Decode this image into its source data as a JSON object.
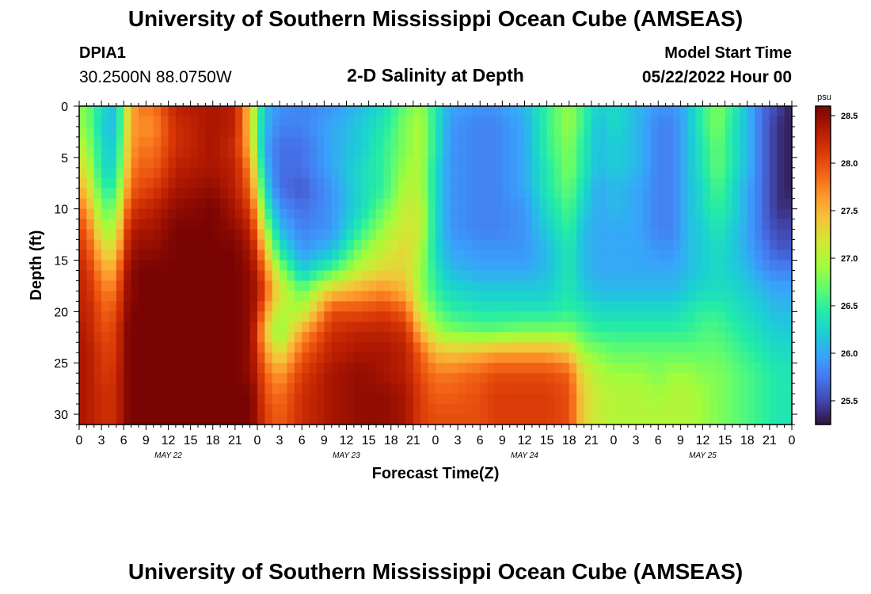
{
  "header": {
    "title": "University of Southern Mississippi Ocean Cube (AMSEAS)",
    "station_id": "DPIA1",
    "station_coords": "30.2500N  88.0750W",
    "subtitle": "2-D Salinity at Depth",
    "model_start_label": "Model Start Time",
    "model_start_value": "05/22/2022 Hour 00"
  },
  "footer": {
    "title": "University of Southern Mississippi Ocean Cube (AMSEAS)"
  },
  "chart_data": {
    "type": "heatmap",
    "title": "2-D Salinity at Depth",
    "xlabel": "Forecast Time(Z)",
    "ylabel": "Depth (ft)",
    "units": "psu",
    "x_range_hours": [
      0,
      96
    ],
    "y_range_ft": [
      0,
      31
    ],
    "y_ticks": [
      0,
      5,
      10,
      15,
      20,
      25,
      30
    ],
    "x_tick_labels": [
      "0",
      "3",
      "6",
      "9",
      "12",
      "15",
      "18",
      "21",
      "0",
      "3",
      "6",
      "9",
      "12",
      "15",
      "18",
      "21",
      "0",
      "3",
      "6",
      "9",
      "12",
      "15",
      "18",
      "21",
      "0",
      "3",
      "6",
      "9",
      "12",
      "15",
      "18",
      "21",
      "0"
    ],
    "day_labels": [
      "MAY 22",
      "MAY 23",
      "MAY 24",
      "MAY 25"
    ],
    "colorbar": {
      "range": [
        25.25,
        28.6
      ],
      "ticks": [
        "25.5",
        "26.0",
        "26.5",
        "27.0",
        "27.5",
        "28.0",
        "28.5"
      ],
      "colormap": [
        "#30123b",
        "#4145ab",
        "#4675ed",
        "#39a2fc",
        "#1bcfd4",
        "#24eca6",
        "#61fc6c",
        "#a4fc3b",
        "#d1e834",
        "#f3c63a",
        "#fe9b2d",
        "#f36315",
        "#d93806",
        "#b11901",
        "#7a0403"
      ]
    },
    "depth_levels_ft": [
      0,
      2,
      4,
      6,
      8,
      10,
      12,
      14,
      16,
      18,
      20,
      22,
      24,
      26,
      28,
      30
    ],
    "time_keys_hours": [
      0,
      2,
      3,
      5,
      6,
      7,
      8,
      10,
      13,
      18,
      21,
      23,
      24,
      25,
      27,
      30,
      34,
      38,
      41,
      44,
      46,
      48,
      50,
      54,
      56,
      60,
      63,
      66,
      68,
      70,
      72,
      75,
      78,
      80,
      82,
      84,
      86,
      88,
      90,
      92,
      94,
      96
    ],
    "salinity_psu": [
      [
        26.9,
        26.6,
        26.3,
        26.1,
        26.9,
        27.5,
        27.8,
        27.8,
        28.3,
        28.4,
        28.3,
        27.4,
        26.7,
        26.1,
        25.9,
        25.8,
        25.9,
        26.1,
        26.3,
        26.7,
        26.9,
        26.4,
        26.0,
        25.9,
        25.9,
        26.1,
        26.5,
        26.9,
        26.5,
        26.2,
        26.3,
        26.1,
        25.9,
        25.9,
        26.1,
        26.5,
        26.8,
        26.5,
        26.1,
        25.7,
        25.5,
        25.3
      ],
      [
        26.9,
        26.6,
        26.2,
        26.1,
        26.9,
        27.6,
        27.7,
        27.7,
        28.2,
        28.4,
        28.3,
        27.4,
        26.6,
        26.1,
        25.8,
        25.8,
        26.0,
        26.2,
        26.4,
        26.8,
        27.0,
        26.4,
        25.9,
        25.8,
        25.8,
        26.0,
        26.5,
        26.9,
        26.5,
        26.1,
        26.3,
        26.1,
        25.8,
        25.8,
        26.1,
        26.5,
        26.8,
        26.4,
        26.1,
        25.7,
        25.4,
        25.3
      ],
      [
        27.1,
        26.7,
        26.3,
        26.2,
        27.0,
        27.6,
        27.8,
        27.8,
        28.2,
        28.4,
        28.2,
        27.5,
        26.7,
        26.0,
        25.7,
        25.7,
        26.0,
        26.2,
        26.5,
        26.8,
        27.0,
        26.4,
        25.9,
        25.8,
        25.8,
        26.0,
        26.5,
        26.8,
        26.4,
        26.1,
        26.2,
        26.1,
        25.8,
        25.8,
        26.1,
        26.4,
        26.7,
        26.4,
        26.1,
        25.7,
        25.4,
        25.3
      ],
      [
        27.3,
        26.8,
        26.3,
        26.3,
        27.1,
        27.7,
        27.9,
        27.9,
        28.3,
        28.4,
        28.3,
        27.7,
        26.9,
        26.1,
        25.7,
        25.7,
        26.0,
        26.3,
        26.5,
        26.9,
        27.0,
        26.3,
        25.9,
        25.8,
        25.8,
        26.0,
        26.4,
        26.8,
        26.4,
        26.1,
        26.2,
        26.1,
        25.8,
        25.8,
        26.1,
        26.4,
        26.7,
        26.4,
        26.1,
        25.7,
        25.4,
        25.3
      ],
      [
        27.6,
        27.0,
        26.5,
        26.5,
        27.3,
        27.9,
        28.0,
        28.1,
        28.4,
        28.5,
        28.3,
        27.9,
        27.1,
        26.3,
        25.7,
        25.6,
        25.9,
        26.3,
        26.5,
        27.0,
        27.0,
        26.3,
        25.9,
        25.8,
        25.8,
        26.0,
        26.4,
        26.7,
        26.3,
        26.0,
        26.1,
        26.0,
        25.8,
        25.8,
        26.1,
        26.3,
        26.6,
        26.3,
        26.0,
        25.7,
        25.4,
        25.3
      ],
      [
        27.9,
        27.3,
        26.7,
        26.8,
        27.6,
        28.1,
        28.2,
        28.3,
        28.5,
        28.6,
        28.4,
        28.1,
        27.5,
        26.6,
        25.9,
        25.7,
        25.9,
        26.3,
        26.7,
        27.1,
        27.1,
        26.3,
        25.9,
        25.8,
        25.8,
        25.9,
        26.3,
        26.6,
        26.2,
        26.0,
        26.1,
        26.0,
        25.8,
        25.8,
        26.1,
        26.3,
        26.5,
        26.3,
        26.0,
        25.7,
        25.4,
        25.4
      ],
      [
        28.1,
        27.6,
        27.0,
        27.0,
        27.9,
        28.3,
        28.4,
        28.4,
        28.6,
        28.6,
        28.5,
        28.3,
        27.8,
        27.0,
        26.1,
        25.8,
        25.9,
        26.5,
        26.9,
        27.2,
        27.1,
        26.3,
        25.9,
        25.8,
        25.8,
        25.9,
        26.2,
        26.5,
        26.1,
        26.0,
        26.0,
        26.0,
        25.8,
        25.8,
        26.1,
        26.2,
        26.4,
        26.2,
        26.0,
        25.7,
        25.5,
        25.5
      ],
      [
        28.2,
        27.8,
        27.3,
        27.3,
        28.1,
        28.4,
        28.5,
        28.5,
        28.6,
        28.6,
        28.6,
        28.4,
        28.1,
        27.4,
        26.4,
        25.9,
        26.1,
        26.8,
        27.1,
        27.3,
        27.0,
        26.3,
        26.0,
        25.9,
        25.9,
        25.9,
        26.1,
        26.4,
        26.1,
        26.0,
        26.0,
        26.0,
        25.9,
        25.9,
        26.1,
        26.2,
        26.3,
        26.2,
        26.0,
        25.8,
        25.6,
        25.6
      ],
      [
        28.3,
        28.0,
        27.6,
        27.6,
        28.3,
        28.5,
        28.6,
        28.6,
        28.6,
        28.6,
        28.6,
        28.5,
        28.3,
        27.8,
        26.9,
        26.2,
        26.6,
        27.1,
        27.3,
        27.3,
        26.9,
        26.4,
        26.1,
        26.0,
        26.0,
        26.0,
        26.1,
        26.4,
        26.1,
        26.0,
        26.0,
        26.0,
        26.0,
        26.0,
        26.1,
        26.2,
        26.3,
        26.2,
        26.1,
        25.9,
        25.8,
        25.8
      ],
      [
        28.3,
        28.1,
        27.8,
        27.8,
        28.4,
        28.5,
        28.6,
        28.6,
        28.6,
        28.6,
        28.6,
        28.5,
        28.4,
        28.0,
        27.2,
        26.7,
        27.4,
        27.6,
        27.7,
        27.5,
        26.9,
        26.5,
        26.3,
        26.2,
        26.2,
        26.2,
        26.2,
        26.4,
        26.2,
        26.1,
        26.1,
        26.1,
        26.1,
        26.1,
        26.2,
        26.3,
        26.3,
        26.3,
        26.2,
        26.1,
        26.0,
        26.0
      ],
      [
        28.3,
        28.2,
        27.9,
        28.0,
        28.4,
        28.6,
        28.6,
        28.6,
        28.6,
        28.6,
        28.6,
        28.5,
        28.3,
        27.7,
        27.0,
        27.0,
        28.0,
        28.0,
        28.1,
        27.9,
        27.1,
        26.7,
        26.5,
        26.4,
        26.4,
        26.4,
        26.4,
        26.5,
        26.4,
        26.3,
        26.3,
        26.3,
        26.3,
        26.3,
        26.4,
        26.5,
        26.5,
        26.4,
        26.3,
        26.2,
        26.1,
        26.1
      ],
      [
        28.4,
        28.2,
        28.0,
        28.1,
        28.5,
        28.6,
        28.6,
        28.6,
        28.6,
        28.6,
        28.6,
        28.5,
        28.1,
        27.4,
        26.8,
        27.6,
        28.2,
        28.3,
        28.3,
        28.2,
        27.5,
        27.0,
        26.8,
        26.7,
        26.7,
        26.8,
        26.8,
        26.8,
        26.6,
        26.5,
        26.5,
        26.5,
        26.5,
        26.5,
        26.5,
        26.6,
        26.6,
        26.5,
        26.4,
        26.3,
        26.2,
        26.2
      ],
      [
        28.4,
        28.3,
        28.1,
        28.1,
        28.5,
        28.6,
        28.6,
        28.6,
        28.6,
        28.6,
        28.6,
        28.5,
        28.2,
        27.7,
        27.2,
        27.9,
        28.3,
        28.4,
        28.4,
        28.3,
        27.9,
        27.5,
        27.4,
        27.5,
        27.6,
        27.6,
        27.6,
        27.4,
        26.9,
        26.8,
        26.7,
        26.7,
        26.7,
        26.7,
        26.7,
        26.7,
        26.7,
        26.6,
        26.5,
        26.4,
        26.3,
        26.3
      ],
      [
        28.4,
        28.3,
        28.1,
        28.2,
        28.5,
        28.6,
        28.6,
        28.6,
        28.6,
        28.6,
        28.6,
        28.5,
        28.3,
        27.9,
        27.6,
        28.1,
        28.4,
        28.5,
        28.4,
        28.3,
        28.0,
        27.8,
        27.8,
        27.9,
        28.0,
        28.0,
        28.0,
        27.9,
        27.2,
        27.0,
        26.9,
        26.9,
        26.8,
        26.9,
        26.9,
        26.8,
        26.8,
        26.7,
        26.6,
        26.5,
        26.4,
        26.4
      ],
      [
        28.4,
        28.3,
        28.2,
        28.2,
        28.5,
        28.6,
        28.6,
        28.6,
        28.6,
        28.6,
        28.6,
        28.6,
        28.4,
        28.0,
        27.8,
        28.2,
        28.4,
        28.5,
        28.5,
        28.4,
        28.1,
        27.9,
        27.9,
        28.0,
        28.1,
        28.1,
        28.1,
        28.0,
        27.3,
        27.1,
        27.0,
        27.0,
        26.9,
        27.0,
        27.0,
        26.9,
        26.8,
        26.7,
        26.6,
        26.5,
        26.4,
        26.4
      ],
      [
        28.4,
        28.3,
        28.2,
        28.2,
        28.5,
        28.6,
        28.6,
        28.6,
        28.6,
        28.6,
        28.6,
        28.6,
        28.4,
        28.1,
        27.9,
        28.2,
        28.4,
        28.5,
        28.5,
        28.4,
        28.1,
        28.0,
        28.0,
        28.0,
        28.1,
        28.1,
        28.1,
        28.0,
        27.3,
        27.1,
        27.0,
        27.0,
        27.0,
        27.0,
        27.0,
        26.9,
        26.8,
        26.7,
        26.6,
        26.5,
        26.4,
        26.4
      ]
    ]
  }
}
